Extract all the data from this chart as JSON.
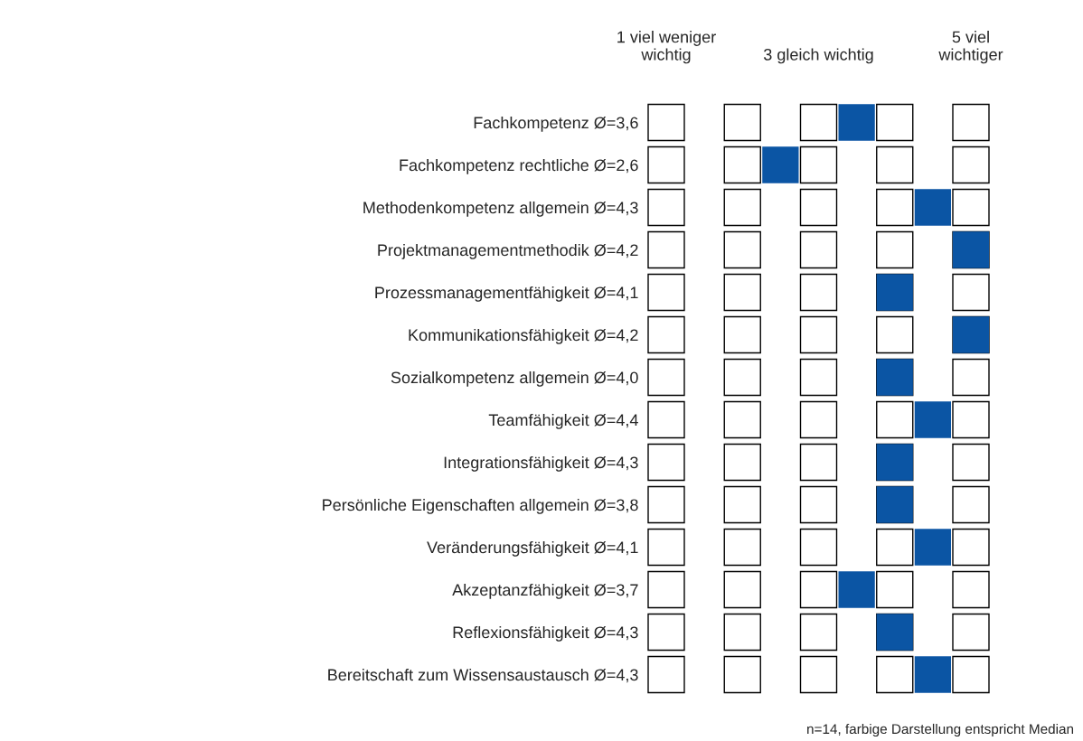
{
  "chart_data": {
    "type": "scatter",
    "orientation": "horizontal",
    "marker": "square",
    "grid": false,
    "legend": false,
    "categories": [
      "Fachkompetenz Ø=3,6",
      "Fachkompetenz rechtliche Ø=2,6",
      "Methodenkompetenz allgemein Ø=4,3",
      "Projektmanagementmethodik Ø=4,2",
      "Prozessmanagementfähigkeit Ø=4,1",
      "Kommunikationsfähigkeit Ø=4,2",
      "Sozialkompetenz allgemein Ø=4,0",
      "Teamfähigkeit Ø=4,4",
      "Integrationsfähigkeit Ø=4,3",
      "Persönliche Eigenschaften allgemein Ø=3,8",
      "Veränderungsfähigkeit Ø=4,1",
      "Akzeptanzfähigkeit Ø=3,7",
      "Reflexionsfähigkeit Ø=4,3",
      "Bereitschaft zum Wissensaustausch Ø=4,3"
    ],
    "series": [
      {
        "color": "#0b55a4",
        "values": [
          3.5,
          2.5,
          4.5,
          5,
          4,
          5,
          4,
          4.5,
          4,
          4,
          4.5,
          3.5,
          4,
          4.5
        ]
      }
    ],
    "xlim": [
      1,
      5
    ],
    "xticks": [
      {
        "value": 1,
        "label": "1 viel weniger\nwichtig"
      },
      {
        "value": 3,
        "label": "3 gleich wichtig"
      },
      {
        "value": 5,
        "label": "5 viel\nwichtiger"
      }
    ],
    "annotations": [
      "n=14, farbige Darstellung entspricht Median"
    ]
  }
}
